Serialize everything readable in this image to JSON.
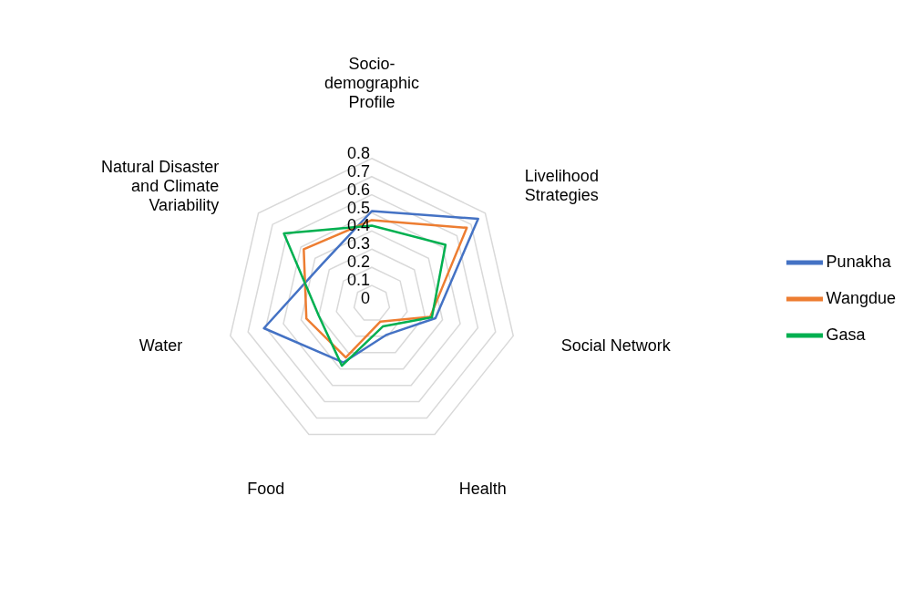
{
  "chart_data": {
    "type": "radar",
    "categories": [
      "Socio-demographic Profile",
      "Livelihood Strategies",
      "Social Network",
      "Health",
      "Food",
      "Water",
      "Natural Disaster and Climate Variability"
    ],
    "series": [
      {
        "name": "Punakha",
        "color": "#4472c4",
        "values": [
          0.51,
          0.75,
          0.36,
          0.19,
          0.36,
          0.61,
          0.35
        ]
      },
      {
        "name": "Wangdue",
        "color": "#ed7d31",
        "values": [
          0.46,
          0.67,
          0.33,
          0.11,
          0.33,
          0.37,
          0.48
        ]
      },
      {
        "name": "Gasa",
        "color": "#00b050",
        "values": [
          0.43,
          0.52,
          0.34,
          0.14,
          0.38,
          0.3,
          0.62
        ]
      }
    ],
    "ylim": [
      0,
      0.8
    ],
    "yticks": [
      0,
      0.1,
      0.2,
      0.3,
      0.4,
      0.5,
      0.6,
      0.7,
      0.8
    ],
    "grid": true,
    "legend": "right",
    "marker": "none"
  }
}
